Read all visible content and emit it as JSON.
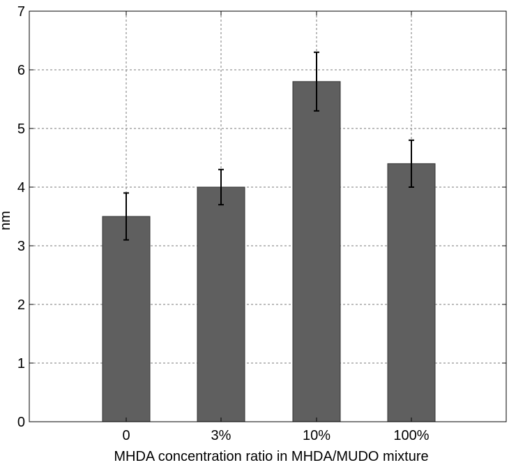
{
  "chart_data": {
    "type": "bar",
    "categories": [
      "0",
      "3%",
      "10%",
      "100%"
    ],
    "values": [
      3.5,
      4.0,
      5.8,
      4.4
    ],
    "error_low": [
      3.1,
      3.7,
      5.3,
      4.0
    ],
    "error_high": [
      3.9,
      4.3,
      6.3,
      4.8
    ],
    "ylim": [
      0,
      7
    ],
    "yticks": [
      "0",
      "1",
      "2",
      "3",
      "4",
      "5",
      "6",
      "7"
    ],
    "title": "",
    "xlabel": "MHDA concentration ratio in MHDA/MUDO mixture",
    "ylabel": "nm",
    "grid": true,
    "bar_color": "#5f5f5f",
    "error_color": "#000000"
  }
}
